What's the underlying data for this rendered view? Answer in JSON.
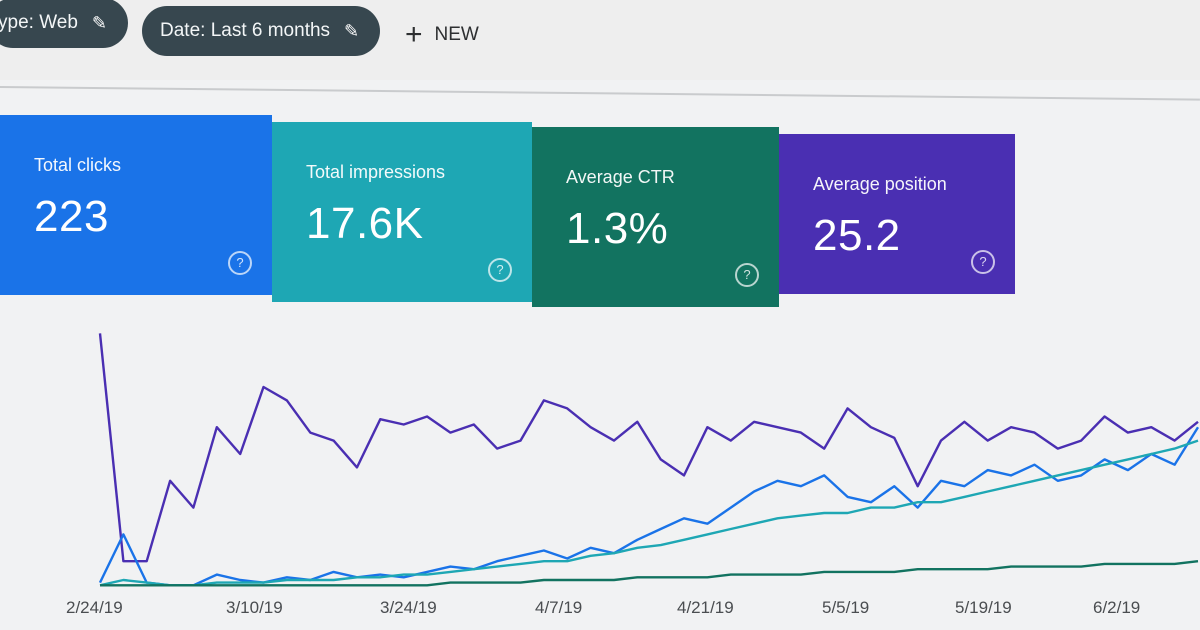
{
  "filters": {
    "type_chip": "ype: Web",
    "date_chip": "Date: Last 6 months",
    "new_label": "NEW"
  },
  "metrics": [
    {
      "label": "Total clicks",
      "value": "223",
      "color": "#1a73e8"
    },
    {
      "label": "Total impressions",
      "value": "17.6K",
      "color": "#1ea7b4"
    },
    {
      "label": "Average CTR",
      "value": "1.3%",
      "color": "#127360"
    },
    {
      "label": "Average position",
      "value": "25.2",
      "color": "#4a2fb2"
    }
  ],
  "chart_data": {
    "type": "line",
    "x_ticks": [
      "2/24/19",
      "3/10/19",
      "3/24/19",
      "4/7/19",
      "4/21/19",
      "5/5/19",
      "5/19/19",
      "6/2/19"
    ],
    "series": [
      {
        "color": "#4a2fb2",
        "values": [
          95,
          10,
          10,
          40,
          30,
          60,
          50,
          75,
          70,
          58,
          55,
          45,
          63,
          61,
          64,
          58,
          61,
          52,
          55,
          70,
          67,
          60,
          55,
          62,
          48,
          42,
          60,
          55,
          62,
          60,
          58,
          52,
          67,
          60,
          56,
          38,
          55,
          62,
          55,
          60,
          58,
          52,
          55,
          64,
          58,
          60,
          55,
          62
        ]
      },
      {
        "color": "#1a73e8",
        "values": [
          2,
          20,
          2,
          1,
          1,
          5,
          3,
          2,
          4,
          3,
          6,
          4,
          5,
          4,
          6,
          8,
          7,
          10,
          12,
          14,
          11,
          15,
          13,
          18,
          22,
          26,
          24,
          30,
          36,
          40,
          38,
          42,
          34,
          32,
          38,
          30,
          40,
          38,
          44,
          42,
          46,
          40,
          42,
          48,
          44,
          50,
          46,
          60
        ]
      },
      {
        "color": "#1ea7b4",
        "values": [
          1,
          3,
          2,
          1,
          1,
          2,
          2,
          2,
          3,
          3,
          3,
          4,
          4,
          5,
          5,
          6,
          7,
          8,
          9,
          10,
          10,
          12,
          13,
          15,
          16,
          18,
          20,
          22,
          24,
          26,
          27,
          28,
          28,
          30,
          30,
          32,
          32,
          34,
          36,
          38,
          40,
          42,
          44,
          46,
          48,
          50,
          52,
          55
        ]
      },
      {
        "color": "#127360",
        "values": [
          1,
          1,
          1,
          1,
          1,
          1,
          1,
          1,
          1,
          1,
          1,
          1,
          1,
          1,
          1,
          2,
          2,
          2,
          2,
          3,
          3,
          3,
          3,
          4,
          4,
          4,
          4,
          5,
          5,
          5,
          5,
          6,
          6,
          6,
          6,
          7,
          7,
          7,
          7,
          8,
          8,
          8,
          8,
          9,
          9,
          9,
          9,
          10
        ]
      }
    ],
    "ylim": [
      0,
      100
    ],
    "grid": false
  }
}
